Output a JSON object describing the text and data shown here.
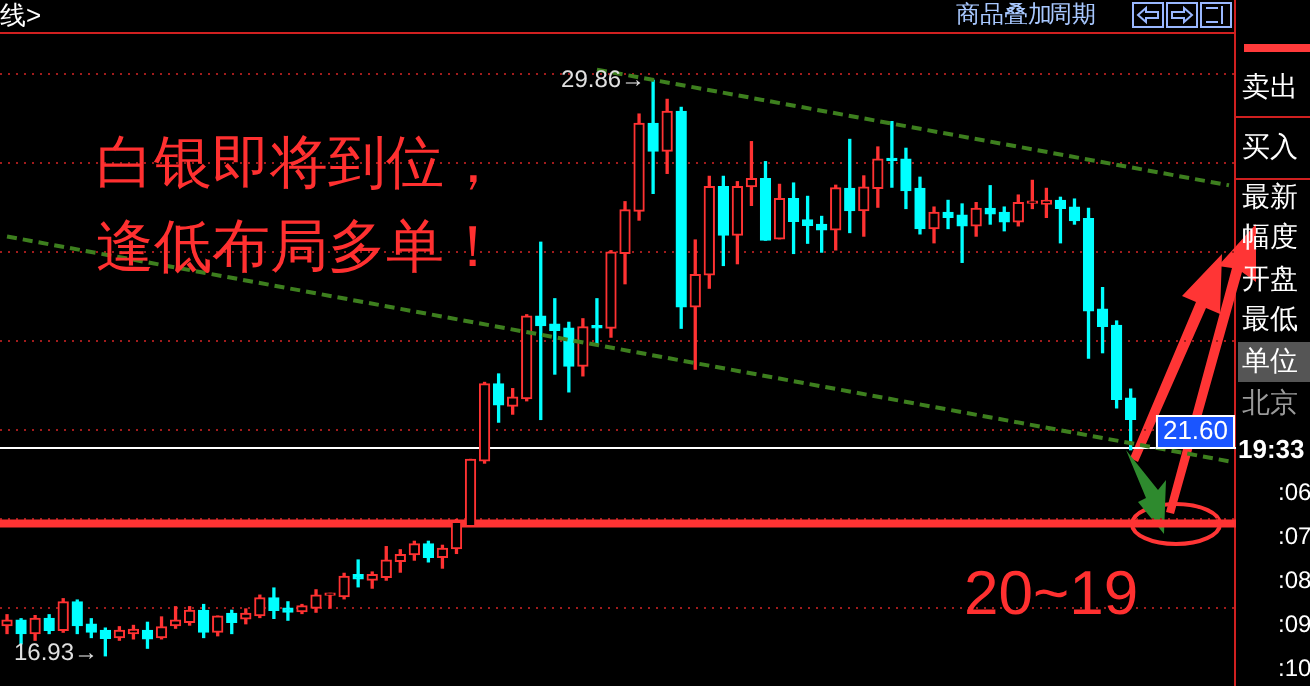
{
  "chart_data": {
    "type": "candlestick",
    "categories": [
      null,
      null,
      null,
      null,
      null,
      null,
      null,
      null,
      null,
      null,
      null,
      null,
      null,
      null,
      null,
      null,
      null,
      null,
      null,
      null,
      null,
      null,
      null,
      null,
      null,
      null,
      null,
      null,
      null,
      null,
      null,
      null,
      null,
      null,
      null,
      null,
      null,
      null,
      null,
      null,
      null,
      null,
      null,
      null,
      null,
      null,
      null,
      null,
      null,
      null,
      null,
      null,
      null,
      null,
      null,
      null,
      null,
      null,
      null,
      null,
      null,
      null,
      null,
      null,
      null,
      null,
      null,
      null,
      null,
      null,
      null,
      null,
      null,
      null,
      null,
      null,
      null,
      null,
      null,
      null,
      null,
      null,
      null,
      null,
      null,
      null,
      null,
      null
    ],
    "ohlc": [
      [
        17.61,
        17.85,
        17.43,
        17.73
      ],
      [
        17.73,
        17.76,
        17.2,
        17.43
      ],
      [
        17.43,
        17.83,
        17.28,
        17.77
      ],
      [
        17.77,
        17.85,
        17.43,
        17.5
      ],
      [
        17.5,
        18.21,
        17.46,
        18.14
      ],
      [
        18.14,
        18.18,
        17.43,
        17.61
      ],
      [
        17.64,
        17.76,
        17.34,
        17.46
      ],
      [
        17.5,
        17.55,
        16.93,
        17.32
      ],
      [
        17.34,
        17.58,
        17.28,
        17.5
      ],
      [
        17.43,
        17.61,
        17.31,
        17.52
      ],
      [
        17.5,
        17.68,
        17.1,
        17.31
      ],
      [
        17.34,
        17.8,
        17.31,
        17.58
      ],
      [
        17.61,
        18.03,
        17.55,
        17.73
      ],
      [
        17.68,
        18.03,
        17.62,
        17.95
      ],
      [
        17.95,
        18.08,
        17.34,
        17.46
      ],
      [
        17.46,
        17.82,
        17.38,
        17.82
      ],
      [
        17.88,
        17.95,
        17.43,
        17.68
      ],
      [
        17.76,
        17.98,
        17.65,
        17.88
      ],
      [
        17.83,
        18.29,
        17.79,
        18.23
      ],
      [
        18.23,
        18.45,
        17.77,
        17.95
      ],
      [
        18.0,
        18.14,
        17.73,
        17.91
      ],
      [
        17.92,
        18.08,
        17.88,
        18.05
      ],
      [
        18.0,
        18.41,
        17.91,
        18.29
      ],
      [
        18.29,
        18.33,
        18.0,
        18.3
      ],
      [
        18.26,
        18.78,
        18.21,
        18.71
      ],
      [
        18.75,
        19.08,
        18.48,
        18.66
      ],
      [
        18.63,
        18.81,
        18.45,
        18.75
      ],
      [
        18.69,
        19.38,
        18.63,
        19.08
      ],
      [
        19.05,
        19.31,
        18.81,
        19.2
      ],
      [
        19.2,
        19.5,
        19.08,
        19.44
      ],
      [
        19.44,
        19.5,
        19.04,
        19.14
      ],
      [
        19.14,
        19.41,
        18.9,
        19.34
      ],
      [
        19.34,
        19.99,
        19.23,
        19.94
      ],
      [
        19.84,
        21.34,
        19.84,
        21.34
      ],
      [
        21.31,
        23.07,
        21.26,
        23.04
      ],
      [
        23.04,
        23.26,
        22.18,
        22.57
      ],
      [
        22.54,
        22.93,
        22.36,
        22.74
      ],
      [
        22.71,
        24.59,
        22.66,
        24.56
      ],
      [
        24.56,
        26.22,
        22.24,
        24.35
      ],
      [
        24.38,
        24.95,
        23.26,
        24.24
      ],
      [
        24.29,
        24.42,
        22.86,
        23.44
      ],
      [
        23.44,
        24.5,
        23.22,
        24.32
      ],
      [
        24.33,
        24.95,
        23.94,
        24.3
      ],
      [
        24.29,
        26.03,
        24.09,
        26.0
      ],
      [
        25.97,
        27.13,
        25.29,
        26.95
      ],
      [
        26.92,
        29.1,
        26.72,
        28.89
      ],
      [
        28.89,
        29.86,
        27.32,
        28.27
      ],
      [
        28.27,
        29.43,
        27.77,
        29.16
      ],
      [
        29.16,
        29.25,
        24.29,
        24.77
      ],
      [
        24.77,
        26.27,
        23.37,
        25.49
      ],
      [
        25.49,
        27.7,
        25.19,
        27.47
      ],
      [
        27.47,
        27.7,
        25.7,
        26.38
      ],
      [
        26.38,
        27.58,
        25.74,
        27.47
      ],
      [
        27.47,
        28.48,
        27.05,
        27.65
      ],
      [
        27.65,
        28.03,
        26.27,
        26.27
      ],
      [
        26.3,
        27.52,
        26.3,
        27.2
      ],
      [
        27.2,
        27.55,
        25.97,
        26.69
      ],
      [
        26.72,
        27.25,
        26.2,
        26.6
      ],
      [
        26.62,
        26.8,
        26.0,
        26.5
      ],
      [
        26.5,
        27.5,
        26.05,
        27.44
      ],
      [
        27.43,
        28.53,
        26.44,
        26.93
      ],
      [
        26.93,
        27.71,
        26.36,
        27.46
      ],
      [
        27.43,
        28.36,
        27.01,
        28.09
      ],
      [
        28.09,
        28.93,
        27.46,
        28.06
      ],
      [
        28.09,
        28.33,
        26.98,
        27.38
      ],
      [
        27.43,
        27.68,
        26.41,
        26.53
      ],
      [
        26.53,
        27.01,
        26.21,
        26.89
      ],
      [
        26.89,
        27.16,
        26.53,
        26.78
      ],
      [
        26.83,
        27.08,
        25.77,
        26.59
      ],
      [
        26.59,
        27.11,
        26.36,
        26.98
      ],
      [
        26.98,
        27.49,
        26.63,
        26.86
      ],
      [
        26.89,
        27.01,
        26.48,
        26.68
      ],
      [
        26.68,
        27.28,
        26.59,
        27.11
      ],
      [
        27.1,
        27.61,
        26.98,
        27.13
      ],
      [
        27.08,
        27.43,
        26.78,
        27.16
      ],
      [
        27.16,
        27.23,
        26.21,
        26.98
      ],
      [
        27.01,
        27.19,
        26.63,
        26.71
      ],
      [
        26.75,
        26.98,
        23.62,
        24.68
      ],
      [
        24.72,
        25.2,
        23.74,
        24.33
      ],
      [
        24.35,
        24.45,
        22.5,
        22.69
      ],
      [
        22.72,
        22.92,
        21.56,
        22.24
      ],
      null,
      null,
      null,
      null,
      null,
      null,
      null
    ],
    "colors": [
      "#ff3232",
      "#00ffff",
      "#ff3232",
      "#00ffff",
      "#ff3232",
      "#00ffff",
      "#00ffff",
      "#00ffff",
      "#ff3232",
      "#ff3232",
      "#00ffff",
      "#ff3232",
      "#ff3232",
      "#ff3232",
      "#00ffff",
      "#ff3232",
      "#00ffff",
      "#ff3232",
      "#ff3232",
      "#00ffff",
      "#00ffff",
      "#ff3232",
      "#ff3232",
      "#ff3232",
      "#ff3232",
      "#00ffff",
      "#ff3232",
      "#ff3232",
      "#ff3232",
      "#ff3232",
      "#00ffff",
      "#ff3232",
      "#ff3232",
      "#ff3232",
      "#ff3232",
      "#00ffff",
      "#ff3232",
      "#ff3232",
      "#00ffff",
      "#00ffff",
      "#00ffff",
      "#ff3232",
      "#00ffff",
      "#ff3232",
      "#ff3232",
      "#ff3232",
      "#00ffff",
      "#ff3232",
      "#00ffff",
      "#ff3232",
      "#ff3232",
      "#00ffff",
      "#ff3232",
      "#ff3232",
      "#00ffff",
      "#ff3232",
      "#00ffff",
      "#00ffff",
      "#00ffff",
      "#ff3232",
      "#00ffff",
      "#ff3232",
      "#ff3232",
      "#00ffff",
      "#00ffff",
      "#00ffff",
      "#ff3232",
      "#00ffff",
      "#00ffff",
      "#ff3232",
      "#00ffff",
      "#00ffff",
      "#ff3232",
      "#ff3232",
      "#ff3232",
      "#00ffff",
      "#00ffff",
      "#00ffff",
      "#00ffff",
      "#00ffff",
      "#00ffff",
      null,
      null,
      null,
      null,
      null,
      null,
      null
    ],
    "series": [
      {
        "type": "line",
        "color": "#3d7f1e",
        "line_style": "dashed",
        "values": [
          null,
          null,
          null,
          null,
          null,
          null,
          null,
          null,
          null,
          null,
          null,
          null,
          null,
          null,
          null,
          null,
          null,
          null,
          null,
          null,
          null,
          null,
          null,
          null,
          null,
          null,
          null,
          null,
          null,
          null,
          null,
          null,
          null,
          null,
          null,
          null,
          null,
          null,
          null,
          null,
          null,
          null,
          30.1,
          null,
          null,
          null,
          null,
          null,
          null,
          null,
          null,
          null,
          null,
          null,
          null,
          null,
          null,
          null,
          null,
          null,
          null,
          null,
          null,
          null,
          null,
          null,
          null,
          null,
          null,
          null,
          null,
          null,
          null,
          null,
          null,
          null,
          null,
          null,
          null,
          null,
          null,
          null,
          null,
          null,
          null,
          null,
          null,
          27.5
        ]
      },
      {
        "type": "line",
        "color": "#3d7f1e",
        "line_style": "dashed",
        "values": [
          26.35,
          null,
          null,
          null,
          null,
          null,
          null,
          null,
          null,
          null,
          null,
          null,
          null,
          null,
          null,
          null,
          null,
          null,
          null,
          null,
          null,
          null,
          null,
          null,
          null,
          null,
          null,
          null,
          null,
          null,
          null,
          null,
          null,
          null,
          null,
          null,
          null,
          null,
          null,
          null,
          null,
          null,
          null,
          null,
          null,
          null,
          null,
          null,
          null,
          null,
          null,
          null,
          null,
          null,
          null,
          null,
          null,
          null,
          null,
          null,
          null,
          null,
          null,
          null,
          null,
          null,
          null,
          null,
          null,
          null,
          null,
          null,
          null,
          null,
          null,
          null,
          null,
          null,
          null,
          null,
          null,
          null,
          null,
          null,
          null,
          null,
          null,
          21.3
        ]
      }
    ],
    "ylim": [
      16.25,
      30.9
    ],
    "yticks": [
      {
        "value": 18,
        "label": null
      },
      {
        "value": 20,
        "label": null
      },
      {
        "value": 22,
        "label": null
      },
      {
        "value": 24,
        "label": null
      },
      {
        "value": 26,
        "label": null
      },
      {
        "value": 28,
        "label": null
      },
      {
        "value": 30,
        "label": null
      }
    ],
    "grid": "y",
    "tick_labels": false,
    "ref_lines": [
      {
        "axis": "y",
        "value": 21.6,
        "label": "21.60",
        "color": "#ffffff"
      },
      {
        "axis": "y",
        "value": 19.9,
        "color": "#ff3333"
      }
    ],
    "annotations": [
      {
        "text": "29.86→",
        "y": 29.86
      },
      "16.93→",
      "白银即将到位，",
      "逢低布局多单！",
      "20~19",
      "线>",
      "商品叠加",
      "周期",
      "卖出",
      "买入",
      "最新",
      "幅度",
      "开盘",
      "最低",
      "单位",
      "北京",
      "19:33",
      ":06",
      ":07",
      ":08",
      ":09",
      ":10"
    ]
  }
}
